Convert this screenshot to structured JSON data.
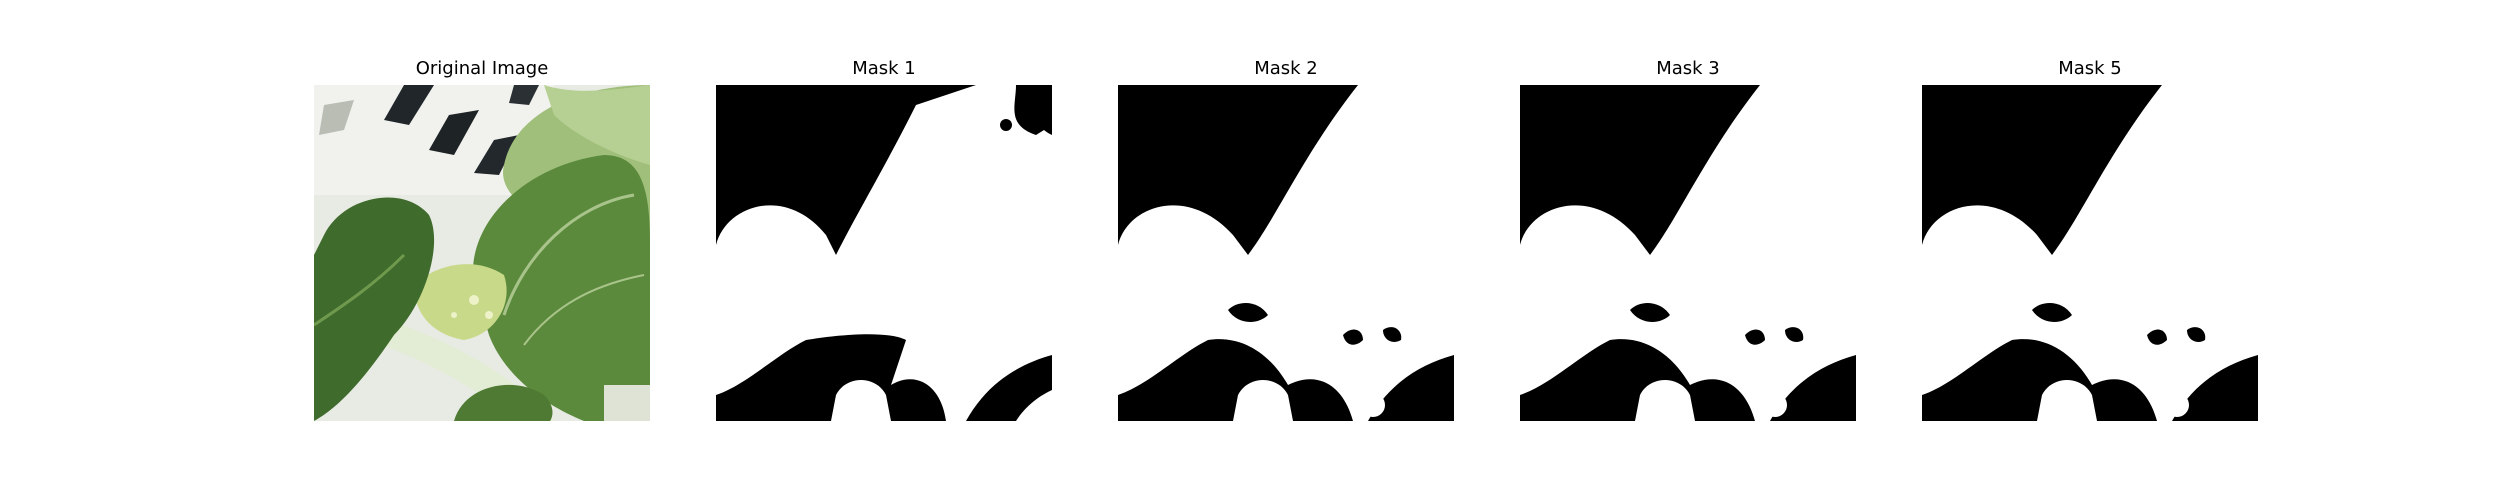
{
  "panels": [
    {
      "title": "Original Image",
      "kind": "photo"
    },
    {
      "title": "Mask 1",
      "kind": "mask"
    },
    {
      "title": "Mask 2",
      "kind": "mask"
    },
    {
      "title": "Mask 3",
      "kind": "mask"
    },
    {
      "title": "Mask 5",
      "kind": "mask"
    }
  ],
  "colors": {
    "mask_background": "#000000",
    "mask_foreground": "#ffffff",
    "leaf_dark": "#3f6b2c",
    "leaf_mid": "#5b8a3c",
    "leaf_light": "#8fb36a",
    "stem": "#dfe9cf",
    "tray": "#eef0ea",
    "tray_slot": "#1e2326"
  }
}
